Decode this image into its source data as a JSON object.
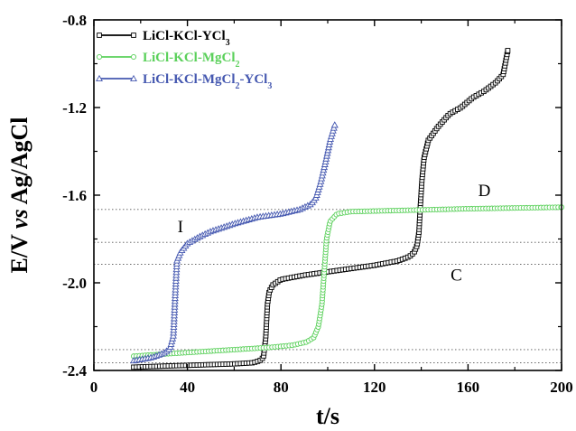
{
  "chart_data": {
    "type": "line",
    "xlabel": "t/s",
    "ylabel_parts": {
      "a": "E/V ",
      "b": "vs",
      "c": " Ag/AgCl"
    },
    "xlim": [
      0,
      200
    ],
    "ylim": [
      -2.4,
      -0.8
    ],
    "x_ticks": [
      "0",
      "40",
      "80",
      "120",
      "160",
      "200"
    ],
    "y_ticks": [
      "-0.8",
      "-1.2",
      "-1.6",
      "-2.0",
      "-2.4"
    ],
    "grid": false,
    "legend_position": "top-left",
    "reference_lines_y": [
      -1.665,
      -1.815,
      -1.915,
      -2.305,
      -2.365
    ],
    "annotations": [
      {
        "text": "I",
        "x": 37,
        "y": -1.77
      },
      {
        "text": "D",
        "x": 167,
        "y": -1.605
      },
      {
        "text": "C",
        "x": 155,
        "y": -1.99
      }
    ],
    "series": [
      {
        "name": "LiCl-KCl-YCl3",
        "legend": {
          "base1": "LiCl-KCl-YCl",
          "sub1": "3",
          "base2": "",
          "sub2": ""
        },
        "color": "#000000",
        "marker": "square",
        "points": [
          [
            17,
            -2.385
          ],
          [
            30,
            -2.38
          ],
          [
            45,
            -2.375
          ],
          [
            60,
            -2.37
          ],
          [
            68,
            -2.365
          ],
          [
            71,
            -2.355
          ],
          [
            72.5,
            -2.34
          ],
          [
            73.5,
            -2.25
          ],
          [
            74.2,
            -2.1
          ],
          [
            75,
            -2.04
          ],
          [
            76.5,
            -2.01
          ],
          [
            80,
            -1.985
          ],
          [
            90,
            -1.965
          ],
          [
            100,
            -1.95
          ],
          [
            110,
            -1.935
          ],
          [
            120,
            -1.92
          ],
          [
            130,
            -1.9
          ],
          [
            135,
            -1.88
          ],
          [
            137,
            -1.86
          ],
          [
            138.2,
            -1.83
          ],
          [
            139,
            -1.77
          ],
          [
            139.6,
            -1.65
          ],
          [
            140.3,
            -1.53
          ],
          [
            141.2,
            -1.43
          ],
          [
            143,
            -1.35
          ],
          [
            147,
            -1.29
          ],
          [
            152,
            -1.23
          ],
          [
            157,
            -1.2
          ],
          [
            162,
            -1.155
          ],
          [
            167,
            -1.125
          ],
          [
            172,
            -1.085
          ],
          [
            175,
            -1.05
          ],
          [
            177,
            -0.94
          ]
        ]
      },
      {
        "name": "LiCl-KCl-MgCl2",
        "legend": {
          "base1": "LiCl-KCl-MgCl",
          "sub1": "2",
          "base2": "",
          "sub2": ""
        },
        "color": "#5ad05a",
        "marker": "circle",
        "points": [
          [
            17,
            -2.335
          ],
          [
            30,
            -2.325
          ],
          [
            45,
            -2.315
          ],
          [
            60,
            -2.305
          ],
          [
            75,
            -2.295
          ],
          [
            85,
            -2.285
          ],
          [
            91,
            -2.27
          ],
          [
            94,
            -2.25
          ],
          [
            96,
            -2.2
          ],
          [
            97.5,
            -2.1
          ],
          [
            98.5,
            -1.95
          ],
          [
            99.5,
            -1.8
          ],
          [
            101,
            -1.72
          ],
          [
            104,
            -1.685
          ],
          [
            110,
            -1.675
          ],
          [
            130,
            -1.67
          ],
          [
            160,
            -1.662
          ],
          [
            200,
            -1.655
          ]
        ]
      },
      {
        "name": "LiCl-KCl-MgCl2-YCl3",
        "legend": {
          "base1": "LiCl-KCl-MgCl",
          "sub1": "2",
          "base2": "-YCl",
          "sub2": "3"
        },
        "color": "#4558b0",
        "marker": "triangle",
        "points": [
          [
            17,
            -2.355
          ],
          [
            25,
            -2.34
          ],
          [
            30,
            -2.32
          ],
          [
            32.5,
            -2.3
          ],
          [
            34,
            -2.24
          ],
          [
            34.8,
            -2.05
          ],
          [
            35.5,
            -1.9
          ],
          [
            37,
            -1.86
          ],
          [
            40,
            -1.82
          ],
          [
            45,
            -1.79
          ],
          [
            50,
            -1.765
          ],
          [
            60,
            -1.73
          ],
          [
            70,
            -1.7
          ],
          [
            80,
            -1.685
          ],
          [
            88,
            -1.665
          ],
          [
            93,
            -1.64
          ],
          [
            95,
            -1.61
          ],
          [
            97,
            -1.54
          ],
          [
            99,
            -1.45
          ],
          [
            101,
            -1.35
          ],
          [
            103,
            -1.28
          ]
        ]
      }
    ]
  }
}
